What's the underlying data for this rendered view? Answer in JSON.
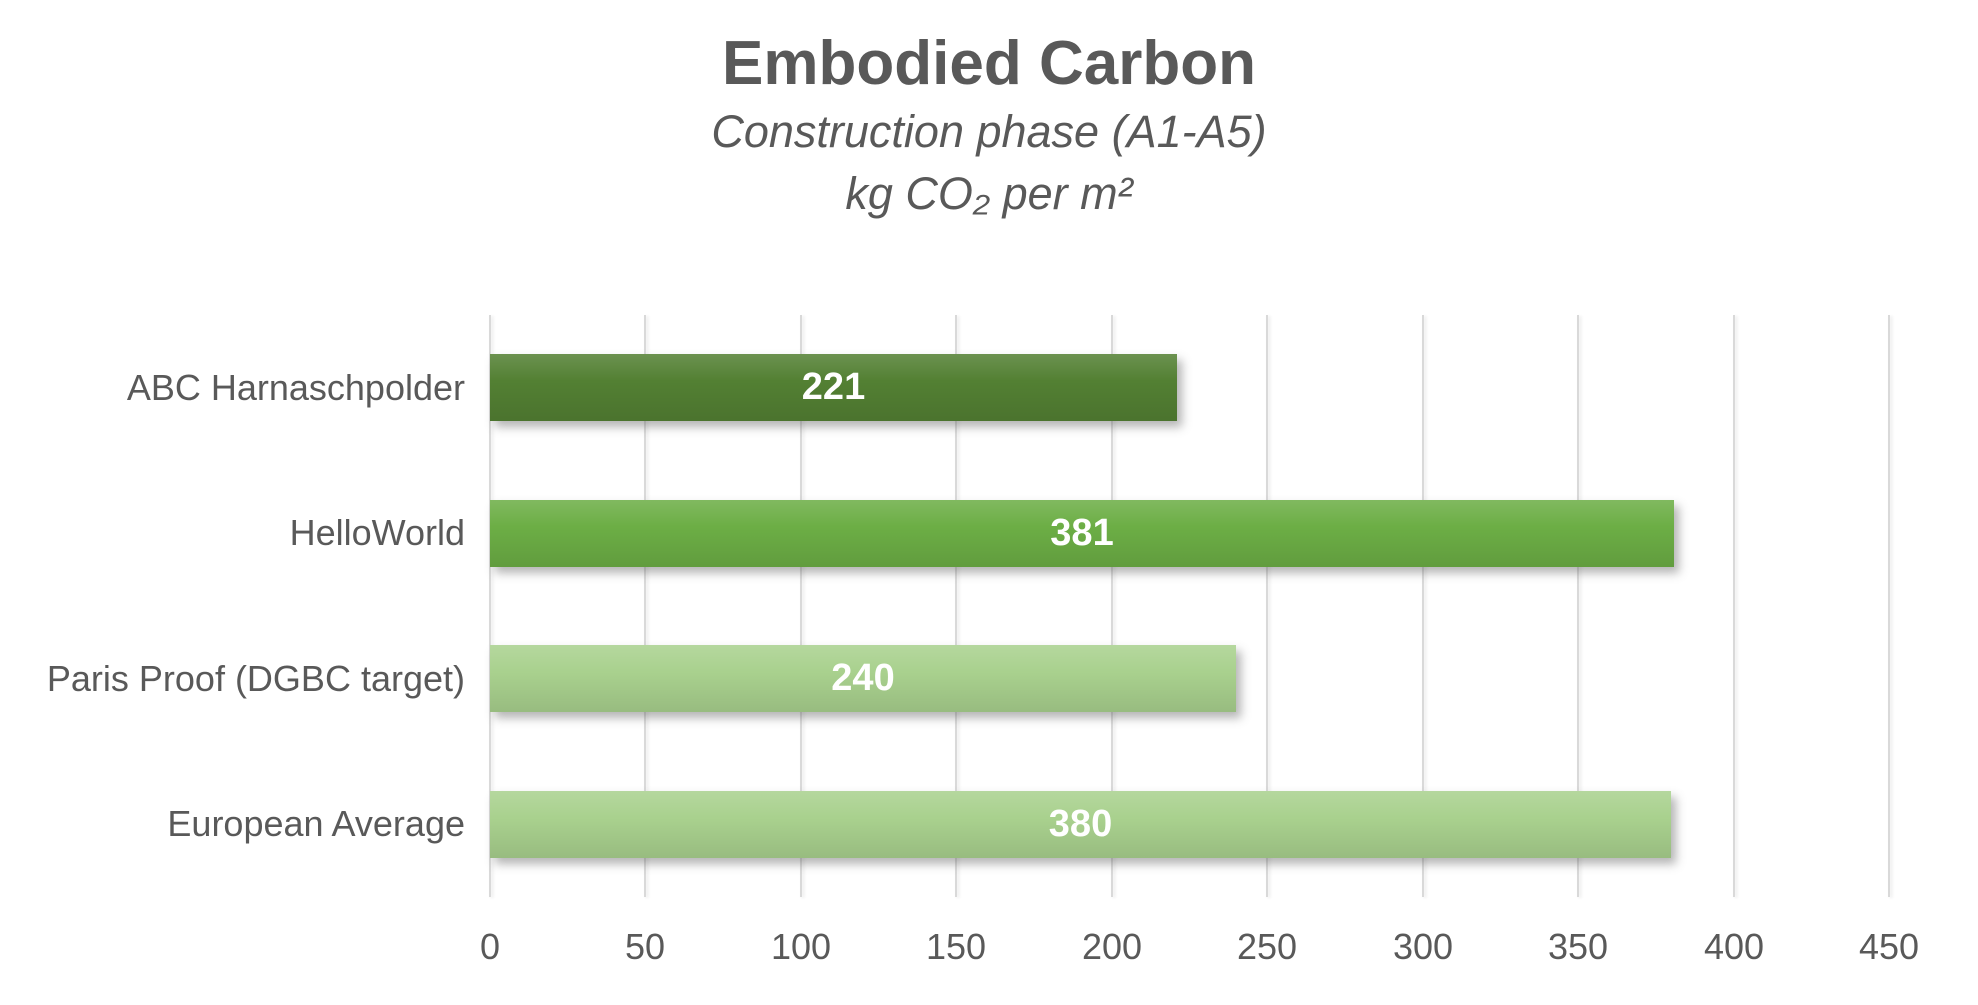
{
  "header": {
    "title": "Embodied Carbon",
    "subtitle_line1": "Construction phase (A1-A5)",
    "subtitle_line2": "kg CO₂ per m²"
  },
  "chart_data": {
    "type": "bar",
    "orientation": "horizontal",
    "title": "Embodied Carbon",
    "subtitle": "Construction phase (A1-A5)",
    "units_label": "kg CO₂ per m²",
    "categories": [
      "ABC Harnaschpolder",
      "HelloWorld",
      "Paris Proof (DGBC target)",
      "European Average"
    ],
    "values": [
      221,
      381,
      240,
      380
    ],
    "value_labels": [
      "221",
      "381",
      "240",
      "380"
    ],
    "bar_colors": [
      "#538033",
      "#6CAE45",
      "#A9D18E",
      "#A9D18E"
    ],
    "xlim": [
      0,
      450
    ],
    "x_ticks": [
      0,
      50,
      100,
      150,
      200,
      250,
      300,
      350,
      400,
      450
    ],
    "grid": true,
    "legend": false,
    "value_label_position": "center"
  },
  "style": {
    "text_color": "#595959",
    "gridline_color": "#d9d9d9",
    "value_label_color": "#ffffff",
    "background": "#ffffff"
  }
}
